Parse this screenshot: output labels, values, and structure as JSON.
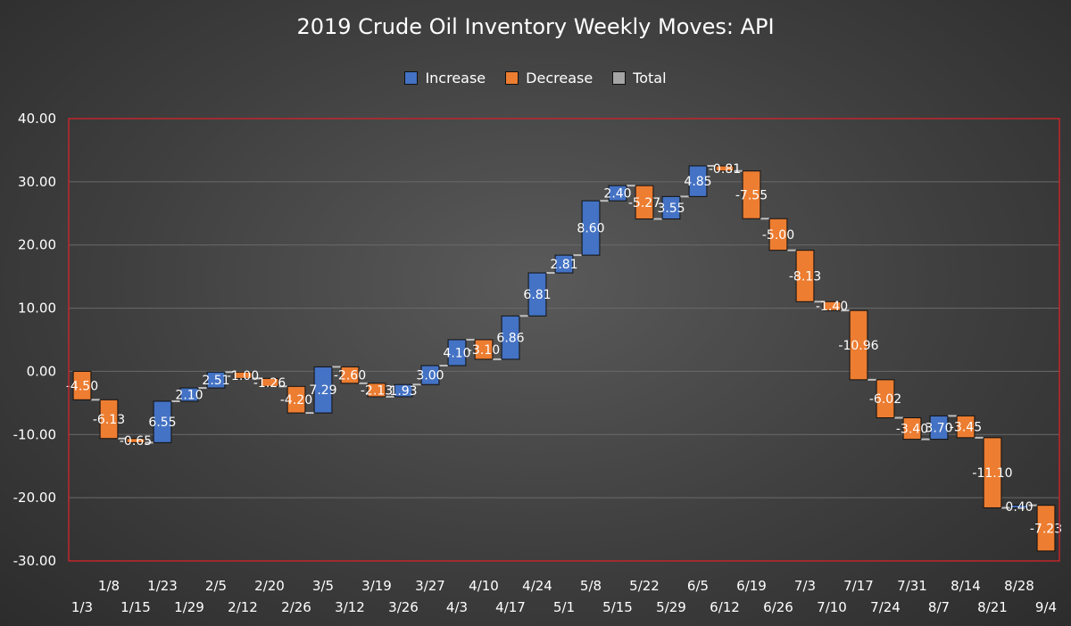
{
  "chart_data": {
    "type": "waterfall",
    "title": "2019 Crude Oil Inventory Weekly Moves: API",
    "xlabel": "",
    "ylabel": "",
    "ylim": [
      -30,
      40
    ],
    "y_ticks": [
      "40.00",
      "30.00",
      "20.00",
      "10.00",
      "0.00",
      "-10.00",
      "-20.00",
      "-30.00"
    ],
    "grid": true,
    "legend": {
      "position": "top",
      "entries": [
        {
          "name": "Increase",
          "color": "#4472c4"
        },
        {
          "name": "Decrease",
          "color": "#ed7d31"
        },
        {
          "name": "Total",
          "color": "#a5a5a5"
        }
      ]
    },
    "categories": [
      "1/3",
      "1/8",
      "1/15",
      "1/23",
      "1/29",
      "2/5",
      "2/12",
      "2/20",
      "2/26",
      "3/5",
      "3/12",
      "3/19",
      "3/26",
      "3/27",
      "4/3",
      "4/10",
      "4/17",
      "4/24",
      "5/1",
      "5/8",
      "5/15",
      "5/22",
      "5/29",
      "6/5",
      "6/12",
      "6/19",
      "6/26",
      "7/3",
      "7/10",
      "7/17",
      "7/24",
      "7/31",
      "8/7",
      "8/14",
      "8/21",
      "8/28",
      "9/4"
    ],
    "values": [
      -4.5,
      -6.13,
      -0.65,
      6.55,
      2.1,
      2.51,
      -1.0,
      -1.26,
      -4.2,
      7.29,
      -2.6,
      -2.13,
      1.93,
      3.0,
      4.1,
      -3.1,
      6.86,
      6.81,
      2.81,
      8.6,
      2.4,
      -5.27,
      3.55,
      4.85,
      -0.81,
      -7.55,
      -5.0,
      -8.13,
      -1.4,
      -10.96,
      -6.02,
      -3.4,
      3.7,
      -3.45,
      -11.1,
      0.4,
      -7.23
    ],
    "labels": [
      "-4.50",
      "-6.13",
      "-0.65",
      "6.55",
      "2.10",
      "2.51",
      "-1.00",
      "-1.26",
      "-4.20",
      "7.29",
      "-2.60",
      "-2.13",
      "1.93",
      "3.00",
      "4.10",
      "-3.10",
      "6.86",
      "6.81",
      "2.81",
      "8.60",
      "2.40",
      "-5.27",
      "3.55",
      "4.85",
      "-0.81",
      "-7.55",
      "-5.00",
      "-8.13",
      "-1.40",
      "-10.96",
      "-6.02",
      "-3.40",
      "3.70",
      "-3.45",
      "-11.10",
      "0.40",
      "-7.23"
    ],
    "colors": {
      "increase": "#4472c4",
      "decrease": "#ed7d31",
      "plot_border": "#c0262c",
      "gridline": "#6a6a6a",
      "connector": "#bfbfbf"
    }
  }
}
